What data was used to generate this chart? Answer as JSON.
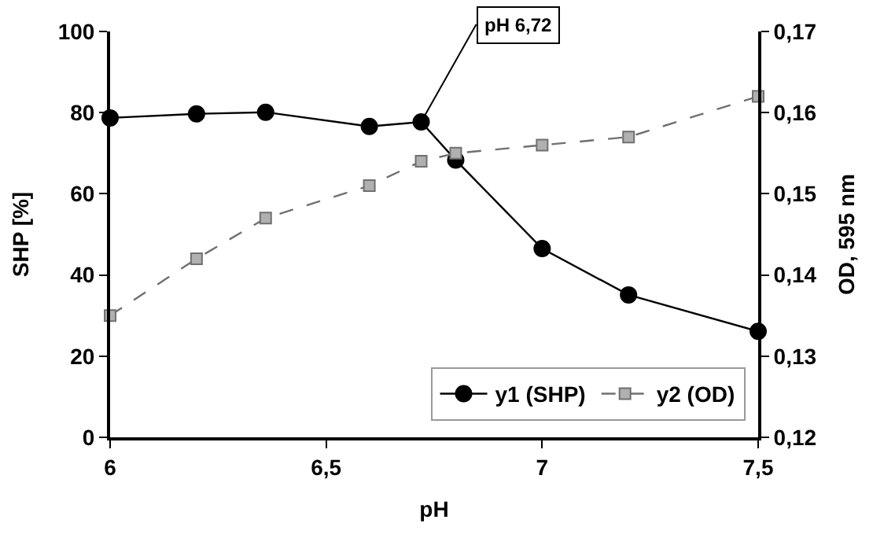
{
  "chart_data": {
    "type": "line",
    "xlabel": "pH",
    "ylabel": "SHP [%]",
    "y2label": "OD, 595 nm",
    "xlim": [
      6,
      7.5
    ],
    "xticks": [
      6,
      {
        "value": 6.5,
        "label": "6,5"
      },
      7,
      {
        "value": 7.5,
        "label": "7,5"
      }
    ],
    "ylim": [
      0,
      100
    ],
    "yticks": [
      0,
      20,
      40,
      60,
      80,
      100
    ],
    "y2lim": [
      0.12,
      0.17
    ],
    "y2ticks": [
      {
        "value": 0.12,
        "label": "0,12"
      },
      {
        "value": 0.13,
        "label": "0,13"
      },
      {
        "value": 0.14,
        "label": "0,14"
      },
      {
        "value": 0.15,
        "label": "0,15"
      },
      {
        "value": 0.16,
        "label": "0,16"
      },
      {
        "value": 0.17,
        "label": "0,17"
      }
    ],
    "x": [
      6,
      6.2,
      6.36,
      6.6,
      6.72,
      6.8,
      7.0,
      7.2,
      7.5
    ],
    "series": [
      {
        "name": "y1 (SHP)",
        "color": "#000000",
        "marker": "circle",
        "line_style": "solid",
        "values": [
          78.7,
          79.7,
          80.1,
          76.6,
          77.7,
          68.3,
          46.5,
          35.1,
          26.1
        ]
      },
      {
        "name": "y2 (OD)",
        "color": "#b0b0b0",
        "marker": "square",
        "line_style": "dashed",
        "axis": "y2",
        "values": [
          0.135,
          0.142,
          0.147,
          0.151,
          0.154,
          0.155,
          0.156,
          0.157,
          0.162
        ]
      }
    ],
    "annotations": [
      {
        "text": "pH 6,72",
        "x": 6.72,
        "y": 77.7
      }
    ],
    "legend": "bottom right"
  }
}
